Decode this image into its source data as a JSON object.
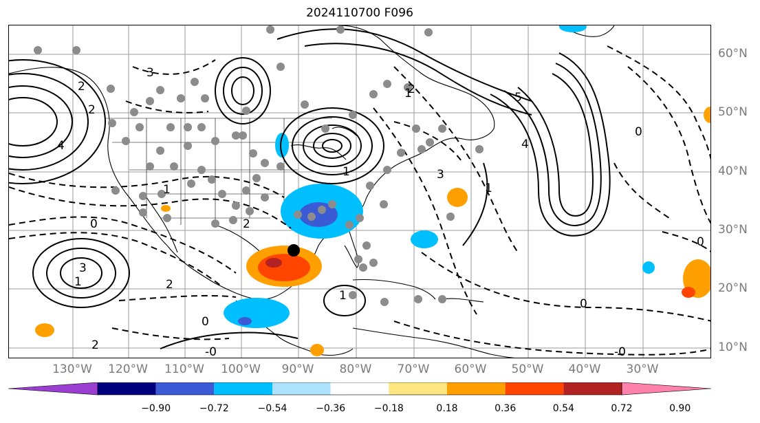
{
  "title": "2024110700 F096",
  "longitude_labels": [
    "130°W",
    "120°W",
    "110°W",
    "100°W",
    "90°W",
    "80°W",
    "70°W",
    "60°W",
    "50°W",
    "40°W",
    "30°W"
  ],
  "latitude_labels": [
    "60°N",
    "50°N",
    "40°N",
    "30°N",
    "20°N",
    "10°N"
  ],
  "colorbar": {
    "colors": [
      "#9b3fd2",
      "#00007f",
      "#3b5bd6",
      "#00bfff",
      "#aee3ff",
      "#ffffff",
      "#ffe680",
      "#ffa000",
      "#ff4500",
      "#b22222",
      "#ff82aa"
    ],
    "tick_labels": [
      "−0.90",
      "−0.72",
      "−0.54",
      "−0.36",
      "−0.18",
      "0.18",
      "0.36",
      "0.54",
      "0.72",
      "0.90"
    ]
  },
  "contour_labels": [
    "3",
    "2",
    "1",
    "0",
    "-0",
    "4",
    "5",
    "3",
    "2",
    "1",
    "0",
    "1",
    "2",
    "3",
    "0",
    "1",
    "-0",
    "2",
    "1",
    "0",
    "2",
    "4",
    "0",
    "1",
    "2"
  ],
  "marker": {
    "name": "storm-center"
  },
  "grid": true
}
